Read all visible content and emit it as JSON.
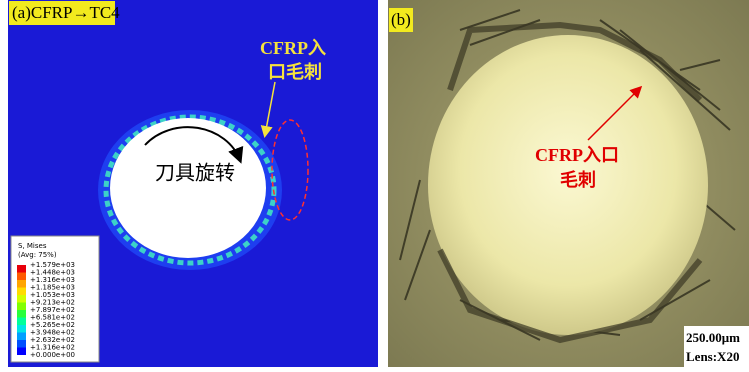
{
  "panel_a": {
    "label": "(a)CFRP→TC4",
    "annotation_lines": [
      "CFRP入",
      "口毛刺"
    ],
    "rotation_label": "刀具旋转",
    "legend": {
      "title": "S, Mises",
      "subtitle": "(Avg: 75%)",
      "labels": [
        "+1.579e+03",
        "+1.448e+03",
        "+1.316e+03",
        "+1.185e+03",
        "+1.053e+03",
        "+9.213e+02",
        "+7.897e+02",
        "+6.581e+02",
        "+5.265e+02",
        "+3.948e+02",
        "+2.632e+02",
        "+1.316e+02",
        "+0.000e+00"
      ],
      "colors": [
        "#e8000a",
        "#ff5a00",
        "#ffa500",
        "#ffdc00",
        "#d2ff00",
        "#82ff00",
        "#28ff3c",
        "#00ff9b",
        "#00e6e6",
        "#00a0ff",
        "#0050ff",
        "#0000ff"
      ]
    }
  },
  "panel_b": {
    "label": "(b)",
    "annotation_lines": [
      "CFRP入口",
      "毛刺"
    ],
    "scale_text": "250.00μm",
    "lens_text": "Lens:X20"
  }
}
